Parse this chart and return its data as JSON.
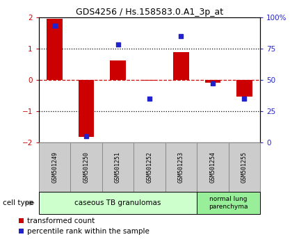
{
  "title": "GDS4256 / Hs.158583.0.A1_3p_at",
  "samples": [
    "GSM501249",
    "GSM501250",
    "GSM501251",
    "GSM501252",
    "GSM501253",
    "GSM501254",
    "GSM501255"
  ],
  "red_values": [
    1.95,
    -1.82,
    0.62,
    -0.02,
    0.88,
    -0.08,
    -0.52
  ],
  "blue_values_pct": [
    93,
    5,
    78,
    35,
    85,
    47,
    35
  ],
  "ylim_left": [
    -2,
    2
  ],
  "ylim_right": [
    0,
    100
  ],
  "yticks_left": [
    -2,
    -1,
    0,
    1,
    2
  ],
  "yticks_right": [
    0,
    25,
    50,
    75,
    100
  ],
  "ytick_labels_right": [
    "0",
    "25",
    "50",
    "75",
    "100%"
  ],
  "hlines_dotted": [
    -1,
    1
  ],
  "hline_dashed": 0,
  "red_color": "#cc0000",
  "blue_color": "#2222cc",
  "bar_width": 0.5,
  "group1_label": "caseous TB granulomas",
  "group2_label": "normal lung\nparenchyma",
  "group1_count": 5,
  "group2_count": 2,
  "group1_color": "#ccffcc",
  "group2_color": "#99ee99",
  "cell_type_label": "cell type",
  "legend1": "transformed count",
  "legend2": "percentile rank within the sample",
  "axis_color_left": "#cc0000",
  "axis_color_right": "#2222cc",
  "sample_box_color": "#cccccc",
  "sample_box_edge": "#888888"
}
